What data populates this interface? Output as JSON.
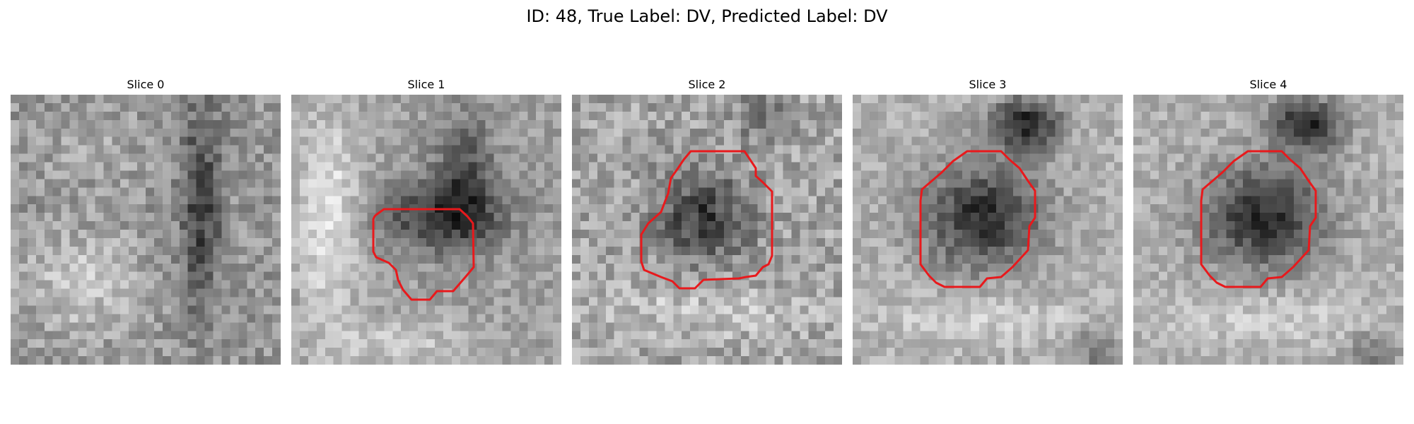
{
  "figure": {
    "title": "ID: 48, True Label: DV, Predicted Label: DV"
  },
  "colors": {
    "contour": "#e8191c",
    "background": "#ffffff",
    "text": "#000000"
  },
  "slices": [
    {
      "label": "Slice 0"
    },
    {
      "label": "Slice 1"
    },
    {
      "label": "Slice 2"
    },
    {
      "label": "Slice 3"
    },
    {
      "label": "Slice 4"
    }
  ]
}
